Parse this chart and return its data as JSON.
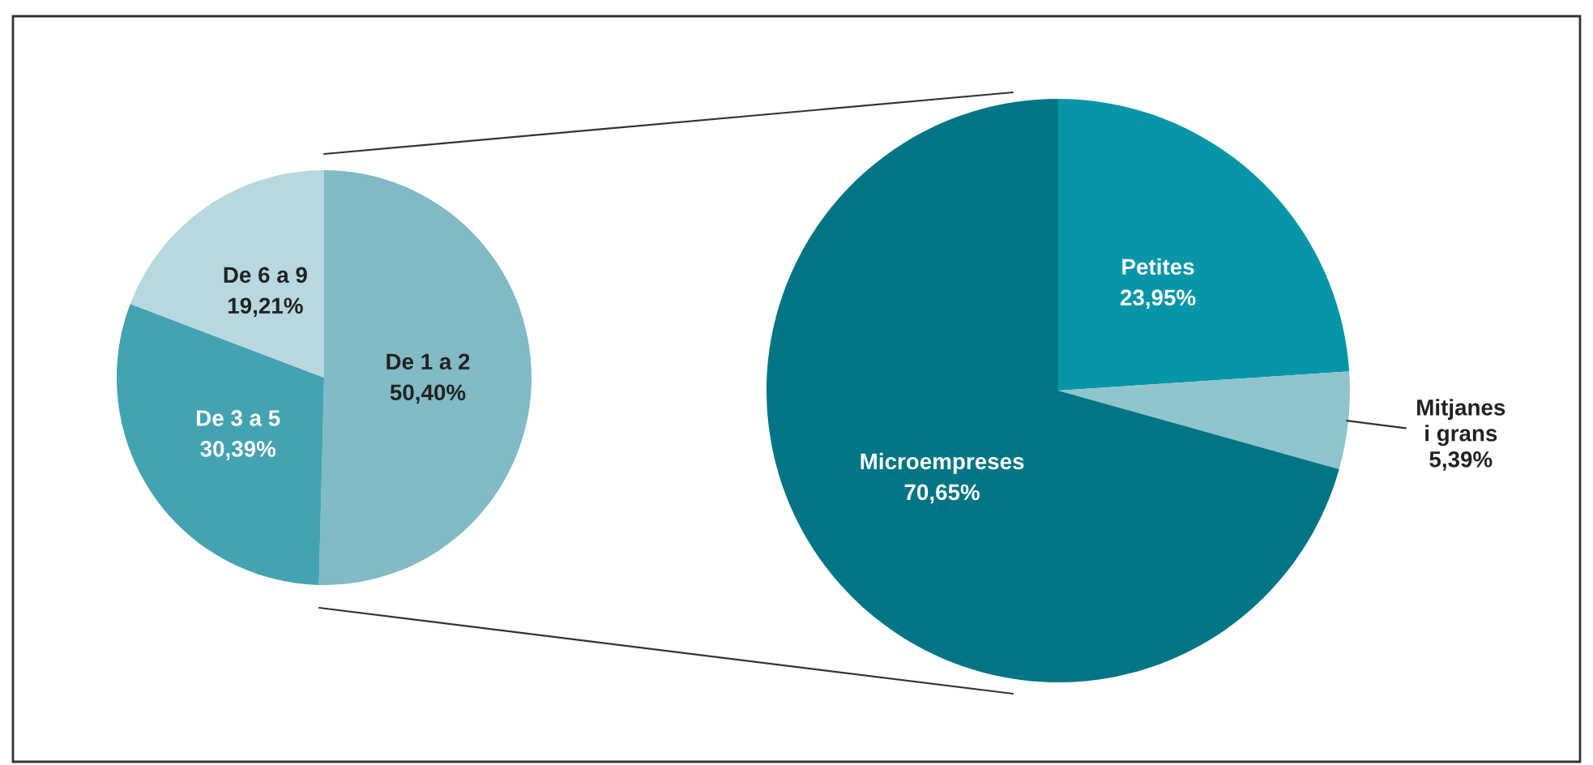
{
  "chart_data": [
    {
      "type": "pie",
      "categories": [
        "De 1 a 2",
        "De 3 a 5",
        "De 6 a 9"
      ],
      "values": [
        50.4,
        30.39,
        19.21
      ],
      "colors": [
        "#82bac6",
        "#44a3b2",
        "#b7d8de"
      ],
      "value_labels": [
        "50,40%",
        "30,39%",
        "19,21%"
      ]
    },
    {
      "type": "pie",
      "categories": [
        "Petites",
        "Mitjanes\ni grans",
        "Microempreses"
      ],
      "values": [
        23.95,
        5.39,
        70.65
      ],
      "colors": [
        "#0696a8",
        "#8fc4cd",
        "#007585"
      ],
      "value_labels": [
        "23,95%",
        "5,39%",
        "70,65%"
      ]
    }
  ]
}
